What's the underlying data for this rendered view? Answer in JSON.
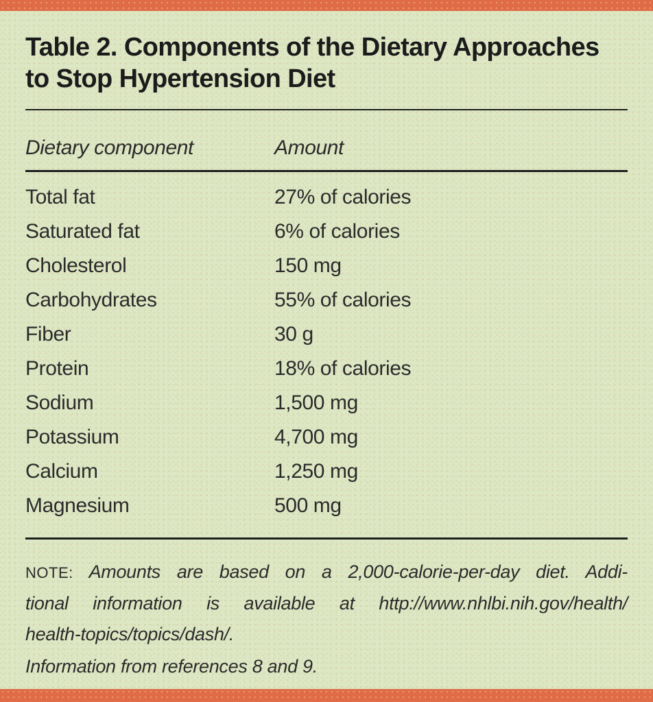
{
  "title": "Table 2. Components of the Dietary Approaches to Stop Hypertension Diet",
  "table": {
    "columns": [
      "Dietary component",
      "Amount"
    ],
    "rows": [
      {
        "component": "Total fat",
        "amount": "27% of calories"
      },
      {
        "component": "Saturated fat",
        "amount": "6% of calories"
      },
      {
        "component": "Cholesterol",
        "amount": "150 mg"
      },
      {
        "component": "Carbohydrates",
        "amount": "55% of calories"
      },
      {
        "component": "Fiber",
        "amount": "30 g"
      },
      {
        "component": "Protein",
        "amount": "18% of calories"
      },
      {
        "component": "Sodium",
        "amount": "1,500 mg"
      },
      {
        "component": "Potassium",
        "amount": "4,700 mg"
      },
      {
        "component": "Calcium",
        "amount": "1,250 mg"
      },
      {
        "component": "Magnesium",
        "amount": "500 mg"
      }
    ]
  },
  "note": {
    "label": "NOTE:",
    "lines": [
      "Amounts are based on a 2,000-calorie-per-day diet. Addi-",
      "tional information is available at http://www.nhlbi.nih.gov/health/",
      "health-topics/topics/dash/."
    ]
  },
  "source": "Information from references 8 and 9.",
  "colors": {
    "accent_bar": "#df6c47",
    "panel_background": "#dde7c4",
    "rule": "#1d1d1d",
    "text": "#242424"
  }
}
